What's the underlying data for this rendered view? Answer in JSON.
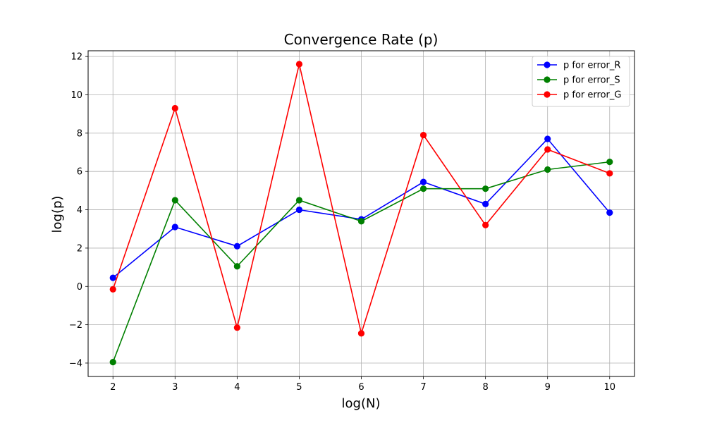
{
  "chart_data": {
    "type": "line",
    "title": "Convergence Rate (p)",
    "xlabel": "log(N)",
    "ylabel": "log(p)",
    "x": [
      2,
      3,
      4,
      5,
      6,
      7,
      8,
      9,
      10
    ],
    "xticks": [
      2,
      3,
      4,
      5,
      6,
      7,
      8,
      9,
      10
    ],
    "yticks": [
      -4,
      -2,
      0,
      2,
      4,
      6,
      8,
      10,
      12
    ],
    "xlim": [
      1.6,
      10.4
    ],
    "ylim": [
      -4.7,
      12.3
    ],
    "grid": true,
    "legend": "top-right",
    "series": [
      {
        "name": "p for error_R",
        "color": "#0000ff",
        "values": [
          0.45,
          3.1,
          2.1,
          4.0,
          3.5,
          5.45,
          4.3,
          7.7,
          3.85
        ]
      },
      {
        "name": "p for error_S",
        "color": "#008000",
        "values": [
          -3.95,
          4.5,
          1.05,
          4.5,
          3.4,
          5.1,
          5.1,
          6.1,
          6.5
        ]
      },
      {
        "name": "p for error_G",
        "color": "#ff0000",
        "values": [
          -0.15,
          9.3,
          -2.15,
          11.6,
          -2.45,
          7.9,
          3.2,
          7.15,
          5.9
        ]
      }
    ]
  }
}
